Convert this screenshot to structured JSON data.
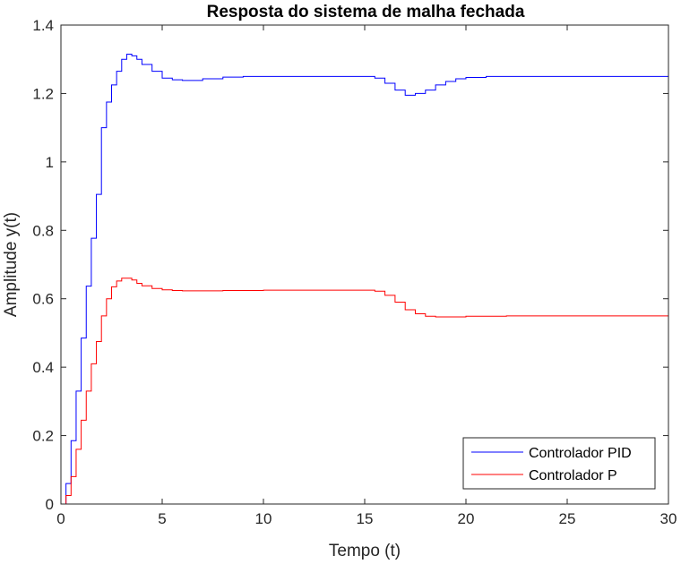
{
  "chart_data": {
    "type": "line",
    "title": "Resposta do sistema de malha fechada",
    "xlabel": "Tempo (t)",
    "ylabel": "Amplitude y(t)",
    "xlim": [
      0,
      30
    ],
    "ylim": [
      0,
      1.4
    ],
    "xticks": [
      0,
      5,
      10,
      15,
      20,
      25,
      30
    ],
    "yticks": [
      0,
      0.2,
      0.4,
      0.6,
      0.8,
      1,
      1.2,
      1.4
    ],
    "xtick_labels": [
      "0",
      "5",
      "10",
      "15",
      "20",
      "25",
      "30"
    ],
    "ytick_labels": [
      "0",
      "0.2",
      "0.4",
      "0.6",
      "0.8",
      "1",
      "1.2",
      "1.4"
    ],
    "grid": false,
    "legend_position": "bottom-right",
    "step_style": true,
    "series": [
      {
        "name": "Controlador PID",
        "color": "#0000ff",
        "x": [
          0,
          0.25,
          0.5,
          0.75,
          1.0,
          1.25,
          1.5,
          1.75,
          2.0,
          2.25,
          2.5,
          2.75,
          3.0,
          3.25,
          3.5,
          3.75,
          4.0,
          4.5,
          5.0,
          5.5,
          6.0,
          7.0,
          8.0,
          9.0,
          10.0,
          12.0,
          14.0,
          15.0,
          15.5,
          16.0,
          16.5,
          17.0,
          17.5,
          18.0,
          18.5,
          19.0,
          19.5,
          20.0,
          21.0,
          22.0,
          25.0,
          30.0
        ],
        "y": [
          0,
          0.06,
          0.185,
          0.33,
          0.485,
          0.637,
          0.777,
          0.905,
          1.1,
          1.175,
          1.225,
          1.265,
          1.3,
          1.315,
          1.31,
          1.3,
          1.285,
          1.265,
          1.245,
          1.24,
          1.238,
          1.243,
          1.248,
          1.25,
          1.25,
          1.25,
          1.25,
          1.25,
          1.245,
          1.23,
          1.21,
          1.195,
          1.2,
          1.21,
          1.225,
          1.235,
          1.243,
          1.247,
          1.25,
          1.25,
          1.25,
          1.25
        ]
      },
      {
        "name": "Controlador P",
        "color": "#ff0000",
        "x": [
          0,
          0.25,
          0.5,
          0.75,
          1.0,
          1.25,
          1.5,
          1.75,
          2.0,
          2.25,
          2.5,
          2.75,
          3.0,
          3.25,
          3.5,
          3.75,
          4.0,
          4.5,
          5.0,
          5.5,
          6.0,
          7.0,
          8.0,
          10.0,
          12.0,
          14.0,
          15.0,
          15.5,
          16.0,
          16.5,
          17.0,
          17.5,
          18.0,
          18.5,
          19.0,
          20.0,
          22.0,
          25.0,
          30.0
        ],
        "y": [
          0,
          0.025,
          0.08,
          0.16,
          0.245,
          0.33,
          0.41,
          0.475,
          0.55,
          0.6,
          0.635,
          0.652,
          0.66,
          0.66,
          0.655,
          0.645,
          0.638,
          0.63,
          0.626,
          0.624,
          0.623,
          0.623,
          0.624,
          0.625,
          0.625,
          0.625,
          0.625,
          0.622,
          0.61,
          0.59,
          0.568,
          0.556,
          0.549,
          0.547,
          0.547,
          0.549,
          0.55,
          0.55,
          0.55
        ]
      }
    ]
  }
}
